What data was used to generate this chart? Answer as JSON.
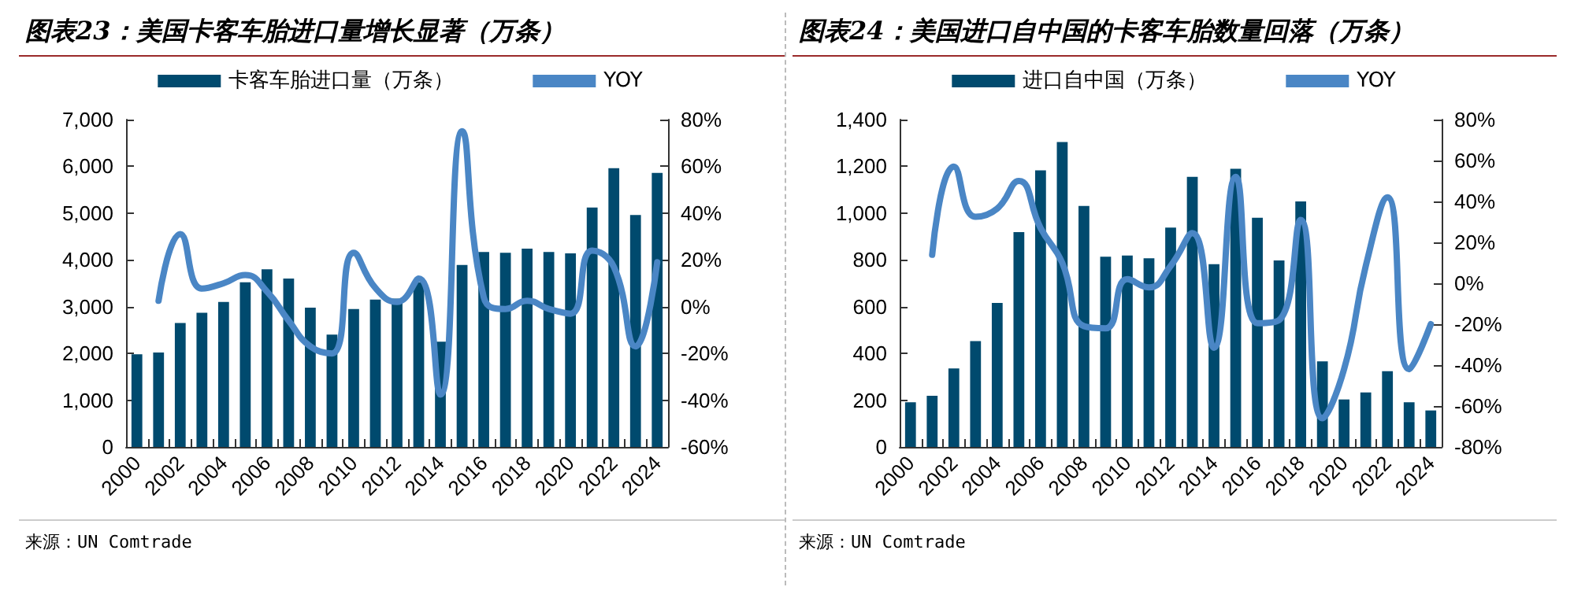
{
  "chart_data": [
    {
      "type": "bar",
      "title": "图表23：美国卡客车胎进口量增长显著（万条）",
      "annotations": [
        "来源：UN Comtrade"
      ],
      "categories": [
        "2000",
        null,
        "2002",
        null,
        "2004",
        null,
        "2006",
        null,
        "2008",
        null,
        "2010",
        null,
        "2012",
        null,
        "2014",
        null,
        "2016",
        null,
        "2018",
        null,
        "2020",
        null,
        "2022",
        null,
        "2024"
      ],
      "series": [
        {
          "name": "卡客车胎进口量（万条）",
          "color": "#004a6e",
          "values": [
            1980,
            2020,
            2650,
            2870,
            3100,
            3520,
            3800,
            3600,
            2980,
            2400,
            2950,
            3150,
            3170,
            3520,
            2250,
            3890,
            4170,
            4150,
            4240,
            4170,
            4140,
            5120,
            5960,
            4960,
            5860
          ]
        },
        {
          "name": "YOY",
          "type": "line",
          "axis": "y2",
          "color": "#4a86c5",
          "values": [
            null,
            2.5,
            31,
            7.7,
            10,
            13.5,
            6.5,
            -6,
            -17,
            -20,
            23,
            8,
            2,
            12,
            -37.6,
            75,
            4,
            -1,
            2.5,
            -1,
            -3,
            24,
            17,
            -17,
            19
          ]
        }
      ],
      "ylim": [
        0,
        7000
      ],
      "yticks": [
        0,
        {
          "value": 1000,
          "label": "1,000"
        },
        {
          "value": 2000,
          "label": "2,000"
        },
        {
          "value": 3000,
          "label": "3,000"
        },
        {
          "value": 4000,
          "label": "4,000"
        },
        {
          "value": 5000,
          "label": "5,000"
        },
        {
          "value": 6000,
          "label": "6,000"
        },
        {
          "value": 7000,
          "label": "7,000"
        }
      ],
      "y2lim": [
        -60,
        80
      ],
      "y2ticks": [
        {
          "value": -60,
          "label": "-60%"
        },
        {
          "value": -40,
          "label": "-40%"
        },
        {
          "value": -20,
          "label": "-20%"
        },
        {
          "value": 0,
          "label": "0%"
        },
        {
          "value": 20,
          "label": "20%"
        },
        {
          "value": 40,
          "label": "40%"
        },
        {
          "value": 60,
          "label": "60%"
        },
        {
          "value": 80,
          "label": "80%"
        }
      ],
      "grid": false,
      "legend": "top",
      "marker": "none",
      "line_style": "solid"
    },
    {
      "type": "bar",
      "title": "图表24：美国进口自中国的卡客车胎数量回落（万条）",
      "annotations": [
        "来源：UN Comtrade"
      ],
      "categories": [
        "2000",
        null,
        "2002",
        null,
        "2004",
        null,
        "2006",
        null,
        "2008",
        null,
        "2010",
        null,
        "2012",
        null,
        "2014",
        null,
        "2016",
        null,
        "2018",
        null,
        "2020",
        null,
        "2022",
        null,
        "2024"
      ],
      "series": [
        {
          "name": "进口自中国（万条）",
          "color": "#004a6e",
          "values": [
            191,
            219,
            336,
            453,
            616,
            919,
            1183,
            1304,
            1031,
            814,
            819,
            807,
            938,
            1155,
            782,
            1190,
            980,
            798,
            1050,
            366,
            203,
            233,
            324,
            191,
            156
          ]
        },
        {
          "name": "YOY",
          "type": "line",
          "axis": "y2",
          "color": "#4a86c5",
          "values": [
            null,
            13.9,
            57,
            32.5,
            36.5,
            50,
            27,
            10,
            -21,
            -22,
            2,
            -2,
            8.5,
            24.5,
            -31.5,
            52,
            -19.5,
            -18,
            31,
            -66,
            -42,
            8.5,
            42,
            -42,
            -20
          ]
        }
      ],
      "ylim": [
        0,
        1400
      ],
      "yticks": [
        0,
        200,
        400,
        600,
        800,
        {
          "value": 1000,
          "label": "1,000"
        },
        {
          "value": 1200,
          "label": "1,200"
        },
        {
          "value": 1400,
          "label": "1,400"
        }
      ],
      "y2lim": [
        -80,
        80
      ],
      "y2ticks": [
        {
          "value": -80,
          "label": "-80%"
        },
        {
          "value": -60,
          "label": "-60%"
        },
        {
          "value": -40,
          "label": "-40%"
        },
        {
          "value": -20,
          "label": "-20%"
        },
        {
          "value": 0,
          "label": "0%"
        },
        {
          "value": 20,
          "label": "20%"
        },
        {
          "value": 40,
          "label": "40%"
        },
        {
          "value": 60,
          "label": "60%"
        },
        {
          "value": 80,
          "label": "80%"
        }
      ],
      "grid": false,
      "legend": "top",
      "marker": "none",
      "line_style": "solid"
    }
  ]
}
